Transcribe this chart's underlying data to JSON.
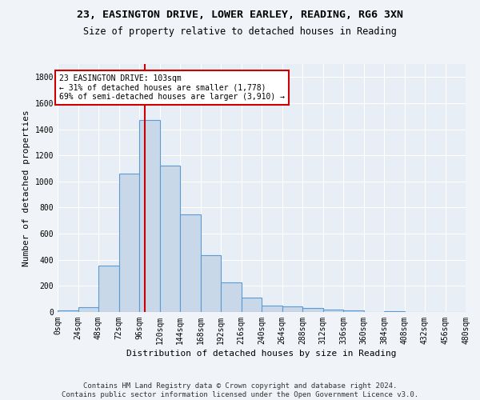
{
  "title1": "23, EASINGTON DRIVE, LOWER EARLEY, READING, RG6 3XN",
  "title2": "Size of property relative to detached houses in Reading",
  "xlabel": "Distribution of detached houses by size in Reading",
  "ylabel": "Number of detached properties",
  "bin_labels": [
    "0sqm",
    "24sqm",
    "48sqm",
    "72sqm",
    "96sqm",
    "120sqm",
    "144sqm",
    "168sqm",
    "192sqm",
    "216sqm",
    "240sqm",
    "264sqm",
    "288sqm",
    "312sqm",
    "336sqm",
    "360sqm",
    "384sqm",
    "408sqm",
    "432sqm",
    "456sqm",
    "480sqm"
  ],
  "bin_edges": [
    0,
    24,
    48,
    72,
    96,
    120,
    144,
    168,
    192,
    216,
    240,
    264,
    288,
    312,
    336,
    360,
    384,
    408,
    432,
    456,
    480
  ],
  "bar_heights": [
    10,
    35,
    355,
    1060,
    1470,
    1120,
    750,
    435,
    225,
    110,
    50,
    45,
    30,
    20,
    15,
    0,
    5,
    0,
    0,
    0
  ],
  "bar_color": "#c8d8e8",
  "bar_edge_color": "#5b9bd5",
  "vline_x": 103,
  "vline_color": "#cc0000",
  "annotation_text": "23 EASINGTON DRIVE: 103sqm\n← 31% of detached houses are smaller (1,778)\n69% of semi-detached houses are larger (3,910) →",
  "annotation_box_color": "#cc0000",
  "annotation_bg": "#ffffff",
  "ylim": [
    0,
    1900
  ],
  "yticks": [
    0,
    200,
    400,
    600,
    800,
    1000,
    1200,
    1400,
    1600,
    1800
  ],
  "footer": "Contains HM Land Registry data © Crown copyright and database right 2024.\nContains public sector information licensed under the Open Government Licence v3.0.",
  "bg_color": "#f0f4f8",
  "plot_bg_color": "#e8eef5",
  "title1_fontsize": 9.5,
  "title2_fontsize": 8.5,
  "xlabel_fontsize": 8,
  "ylabel_fontsize": 8,
  "tick_fontsize": 7,
  "footer_fontsize": 6.5
}
